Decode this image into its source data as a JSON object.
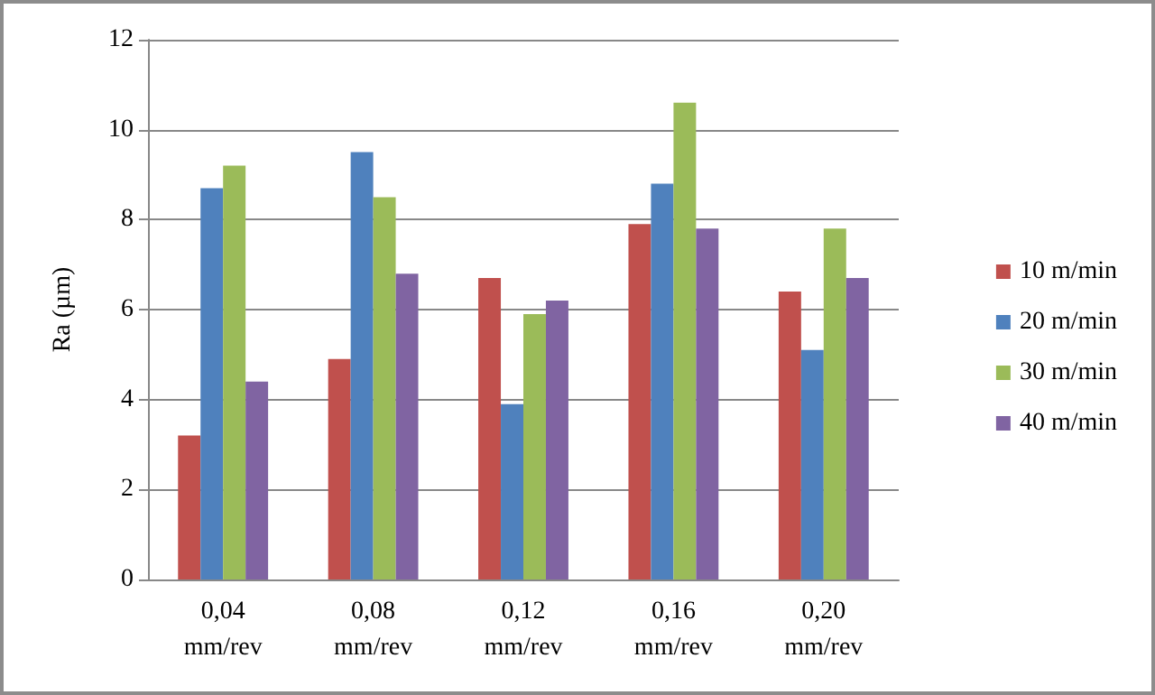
{
  "chart_data": {
    "type": "bar",
    "ylabel": "Ra (µm)",
    "categories": [
      "0,04\nmm/rev",
      "0,08\nmm/rev",
      "0,12\nmm/rev",
      "0,16\nmm/rev",
      "0,20\nmm/rev"
    ],
    "series": [
      {
        "name": "10 m/min",
        "color": "#c0504d",
        "values": [
          3.2,
          4.9,
          6.7,
          7.9,
          6.4
        ]
      },
      {
        "name": "20 m/min",
        "color": "#4f81bd",
        "values": [
          8.7,
          9.5,
          3.9,
          8.8,
          5.1
        ]
      },
      {
        "name": "30 m/min",
        "color": "#9bbb59",
        "values": [
          9.2,
          8.5,
          5.9,
          10.6,
          7.8
        ]
      },
      {
        "name": "40 m/min",
        "color": "#8064a2",
        "values": [
          4.4,
          6.8,
          6.2,
          7.8,
          6.7
        ]
      }
    ],
    "ylim": [
      0,
      12
    ],
    "yticks": [
      0,
      2,
      4,
      6,
      8,
      10,
      12
    ],
    "grid": "y",
    "legend": "right"
  }
}
